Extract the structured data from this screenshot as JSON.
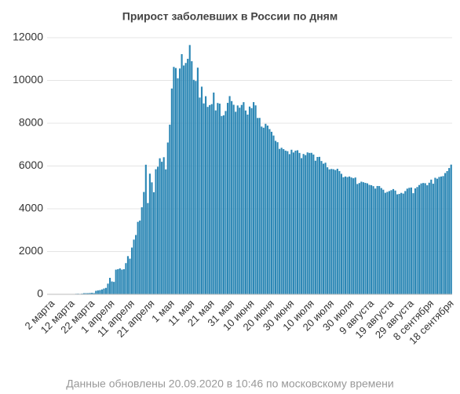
{
  "chart_data": {
    "type": "bar",
    "title": "Прирост заболевших в России по дням",
    "footer": "Данные обновлены 20.09.2020 в 10:46 по московскому времени",
    "color": "#2c87b5",
    "grid": true,
    "ylim": [
      0,
      12000
    ],
    "yticks": [
      0,
      2000,
      4000,
      6000,
      8000,
      10000,
      12000
    ],
    "categories": [
      null,
      "2 марта",
      null,
      null,
      null,
      null,
      null,
      null,
      null,
      null,
      null,
      "12 марта",
      null,
      null,
      null,
      null,
      null,
      null,
      null,
      null,
      null,
      "22 марта",
      null,
      null,
      null,
      null,
      null,
      null,
      null,
      null,
      null,
      "1 апреля",
      null,
      null,
      null,
      null,
      null,
      null,
      null,
      null,
      null,
      "11 апреля",
      null,
      null,
      null,
      null,
      null,
      null,
      null,
      null,
      null,
      "21 апреля",
      null,
      null,
      null,
      null,
      null,
      null,
      null,
      null,
      null,
      "1 мая",
      null,
      null,
      null,
      null,
      null,
      null,
      null,
      null,
      null,
      "11 мая",
      null,
      null,
      null,
      null,
      null,
      null,
      null,
      null,
      null,
      "21 мая",
      null,
      null,
      null,
      null,
      null,
      null,
      null,
      null,
      null,
      "31 мая",
      null,
      null,
      null,
      null,
      null,
      null,
      null,
      null,
      null,
      "10 июня",
      null,
      null,
      null,
      null,
      null,
      null,
      null,
      null,
      null,
      "20 июня",
      null,
      null,
      null,
      null,
      null,
      null,
      null,
      null,
      null,
      "30 июня",
      null,
      null,
      null,
      null,
      null,
      null,
      null,
      null,
      null,
      "10 июля",
      null,
      null,
      null,
      null,
      null,
      null,
      null,
      null,
      null,
      "20 июля",
      null,
      null,
      null,
      null,
      null,
      null,
      null,
      null,
      null,
      "30 июля",
      null,
      null,
      null,
      null,
      null,
      null,
      null,
      null,
      null,
      "9 августа",
      null,
      null,
      null,
      null,
      null,
      null,
      null,
      null,
      null,
      "19 августа",
      null,
      null,
      null,
      null,
      null,
      null,
      null,
      null,
      null,
      "29 августа",
      null,
      null,
      null,
      null,
      null,
      null,
      null,
      null,
      null,
      "8 сентября",
      null,
      null,
      null,
      null,
      null,
      null,
      null,
      null,
      null,
      "18 сентября",
      null
    ],
    "values": [
      0,
      1,
      0,
      0,
      1,
      1,
      4,
      0,
      3,
      3,
      7,
      6,
      14,
      0,
      25,
      30,
      21,
      33,
      52,
      54,
      53,
      62,
      71,
      57,
      163,
      182,
      196,
      228,
      270,
      302,
      500,
      771,
      601,
      582,
      1154,
      1175,
      1212,
      1154,
      1175,
      1459,
      1786,
      1667,
      2186,
      2558,
      2774,
      3388,
      3448,
      4070,
      4785,
      6060,
      4268,
      5642,
      5236,
      4774,
      5849,
      5966,
      6361,
      6198,
      6411,
      5841,
      7099,
      7933,
      9623,
      10633,
      10581,
      10102,
      10559,
      11231,
      10699,
      10817,
      11012,
      11656,
      10899,
      10028,
      9974,
      10598,
      9200,
      9709,
      8926,
      9263,
      8764,
      8849,
      8894,
      9434,
      8599,
      8946,
      8915,
      8338,
      8371,
      8572,
      8952,
      9268,
      9035,
      8863,
      8536,
      8831,
      8726,
      8855,
      8985,
      8595,
      8404,
      8779,
      8706,
      8987,
      8835,
      8246,
      8248,
      7843,
      7790,
      7972,
      7889,
      7728,
      7600,
      7425,
      7176,
      7113,
      6800,
      6852,
      6791,
      6719,
      6693,
      6556,
      6760,
      6632,
      6718,
      6736,
      6611,
      6368,
      6562,
      6509,
      6635,
      6611,
      6615,
      6537,
      6248,
      6422,
      6428,
      6234,
      6109,
      6153,
      5940,
      5842,
      5862,
      5848,
      5811,
      5871,
      5765,
      5635,
      5475,
      5509,
      5482,
      5509,
      5462,
      5427,
      5462,
      5159,
      5204,
      5267,
      5241,
      5212,
      5189,
      5118,
      5102,
      5057,
      4945,
      5065,
      5061,
      4969,
      4892,
      4748,
      4790,
      4828,
      4870,
      4921,
      4852,
      4676,
      4696,
      4744,
      4711,
      4829,
      4941,
      4980,
      4993,
      4729,
      4952,
      5019,
      5110,
      5185,
      5205,
      5195,
      5099,
      5218,
      5363,
      5172,
      5449,
      5406,
      5488,
      5509,
      5529,
      5670,
      5762,
      5905,
      6065
    ]
  }
}
